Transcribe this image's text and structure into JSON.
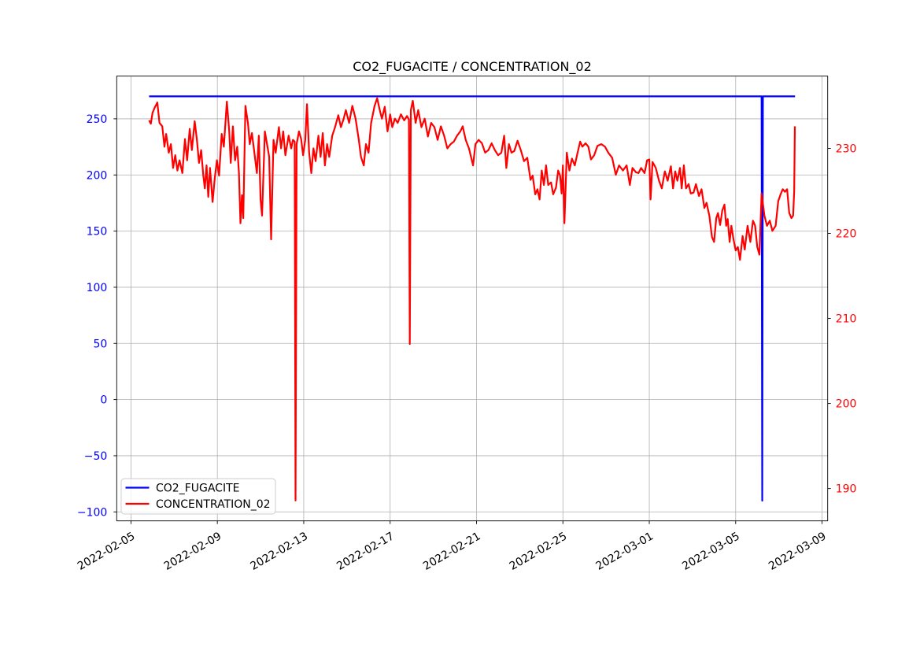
{
  "title": "CO2_FUGACITE / CONCENTRATION_02",
  "chart_data": {
    "type": "line",
    "title": "CO2_FUGACITE / CONCENTRATION_02",
    "grid": {
      "show": true,
      "color": "#b0b0b0"
    },
    "legend": {
      "location": "lower left"
    },
    "x_axis": {
      "kind": "date",
      "epoch_date": "2022-02-05",
      "tick_labels": [
        "2022-02-05",
        "2022-02-09",
        "2022-02-13",
        "2022-02-17",
        "2022-02-21",
        "2022-02-25",
        "2022-03-01",
        "2022-03-05",
        "2022-03-09"
      ],
      "tick_day_offsets": [
        0,
        4,
        8,
        12,
        16,
        20,
        24,
        28,
        32
      ],
      "range_day_offsets": [
        -0.66,
        32.26
      ],
      "label_rotation_deg": 30,
      "label_color": "#000000"
    },
    "y_axis_left": {
      "series": "CO2_FUGACITE",
      "label_color": "#0000ff",
      "tick_labels": [
        "250",
        "200",
        "150",
        "100",
        "50",
        "0",
        "−50",
        "−100"
      ],
      "tick_values": [
        250,
        200,
        150,
        100,
        50,
        0,
        -50,
        -100
      ],
      "range": [
        -108,
        288
      ]
    },
    "y_axis_right": {
      "series": "CONCENTRATION_02",
      "label_color": "#ff0000",
      "tick_labels": [
        "230",
        "220",
        "210",
        "200",
        "190"
      ],
      "tick_values": [
        230,
        220,
        210,
        200,
        190
      ],
      "range": [
        186.2,
        238.5
      ]
    },
    "series": [
      {
        "name": "CO2_FUGACITE",
        "color": "#0000ff",
        "y_axis": "left",
        "points_day_value": [
          [
            0.84,
            270
          ],
          [
            29.2,
            270
          ],
          [
            29.23,
            -90
          ],
          [
            29.26,
            270
          ],
          [
            30.75,
            270
          ]
        ]
      },
      {
        "name": "CONCENTRATION_02",
        "color": "#ff0000",
        "y_axis": "right",
        "points_day_value": [
          [
            0.84,
            233.3
          ],
          [
            0.92,
            232.9
          ],
          [
            1.0,
            234.2
          ],
          [
            1.1,
            234.8
          ],
          [
            1.22,
            235.4
          ],
          [
            1.32,
            233.0
          ],
          [
            1.45,
            232.6
          ],
          [
            1.55,
            230.2
          ],
          [
            1.63,
            231.7
          ],
          [
            1.75,
            229.5
          ],
          [
            1.85,
            230.5
          ],
          [
            1.95,
            227.7
          ],
          [
            2.05,
            229.2
          ],
          [
            2.15,
            227.4
          ],
          [
            2.25,
            228.6
          ],
          [
            2.38,
            227.1
          ],
          [
            2.5,
            231.1
          ],
          [
            2.6,
            228.6
          ],
          [
            2.72,
            232.3
          ],
          [
            2.82,
            229.8
          ],
          [
            2.95,
            233.2
          ],
          [
            3.05,
            231.1
          ],
          [
            3.15,
            228.3
          ],
          [
            3.25,
            229.8
          ],
          [
            3.35,
            226.8
          ],
          [
            3.42,
            225.3
          ],
          [
            3.5,
            228.0
          ],
          [
            3.58,
            224.3
          ],
          [
            3.66,
            227.7
          ],
          [
            3.78,
            223.7
          ],
          [
            3.88,
            226.5
          ],
          [
            3.98,
            228.6
          ],
          [
            4.08,
            226.8
          ],
          [
            4.2,
            231.7
          ],
          [
            4.3,
            230.2
          ],
          [
            4.44,
            235.5
          ],
          [
            4.55,
            232.0
          ],
          [
            4.62,
            228.3
          ],
          [
            4.72,
            232.6
          ],
          [
            4.82,
            228.6
          ],
          [
            4.92,
            230.2
          ],
          [
            5.0,
            227.1
          ],
          [
            5.07,
            221.2
          ],
          [
            5.14,
            224.5
          ],
          [
            5.2,
            221.8
          ],
          [
            5.3,
            235.0
          ],
          [
            5.42,
            232.9
          ],
          [
            5.5,
            230.5
          ],
          [
            5.6,
            231.8
          ],
          [
            5.7,
            229.8
          ],
          [
            5.83,
            227.1
          ],
          [
            5.92,
            231.5
          ],
          [
            6.0,
            224.0
          ],
          [
            6.07,
            222.1
          ],
          [
            6.2,
            232.0
          ],
          [
            6.3,
            230.5
          ],
          [
            6.4,
            229.0
          ],
          [
            6.49,
            219.3
          ],
          [
            6.6,
            231.0
          ],
          [
            6.7,
            229.5
          ],
          [
            6.85,
            232.5
          ],
          [
            6.95,
            230.0
          ],
          [
            7.05,
            232.0
          ],
          [
            7.15,
            229.2
          ],
          [
            7.3,
            231.5
          ],
          [
            7.42,
            230.0
          ],
          [
            7.5,
            231.0
          ],
          [
            7.58,
            230.8
          ],
          [
            7.62,
            188.6
          ],
          [
            7.67,
            230.5
          ],
          [
            7.78,
            232.0
          ],
          [
            7.88,
            231.1
          ],
          [
            7.97,
            229.2
          ],
          [
            8.07,
            231.0
          ],
          [
            8.15,
            235.2
          ],
          [
            8.25,
            229.5
          ],
          [
            8.35,
            227.1
          ],
          [
            8.45,
            230.0
          ],
          [
            8.55,
            228.5
          ],
          [
            8.68,
            231.5
          ],
          [
            8.78,
            229.0
          ],
          [
            8.88,
            231.8
          ],
          [
            8.98,
            228.0
          ],
          [
            9.08,
            230.5
          ],
          [
            9.18,
            229.0
          ],
          [
            9.32,
            231.5
          ],
          [
            9.45,
            232.5
          ],
          [
            9.6,
            233.9
          ],
          [
            9.72,
            232.5
          ],
          [
            9.85,
            233.5
          ],
          [
            9.95,
            234.5
          ],
          [
            10.1,
            233.0
          ],
          [
            10.25,
            235.0
          ],
          [
            10.4,
            233.5
          ],
          [
            10.55,
            231.0
          ],
          [
            10.65,
            229.0
          ],
          [
            10.78,
            228.0
          ],
          [
            10.88,
            230.5
          ],
          [
            11.0,
            229.5
          ],
          [
            11.12,
            233.0
          ],
          [
            11.28,
            235.0
          ],
          [
            11.4,
            235.9
          ],
          [
            11.52,
            234.5
          ],
          [
            11.62,
            233.5
          ],
          [
            11.75,
            234.9
          ],
          [
            11.88,
            232.0
          ],
          [
            12.0,
            234.0
          ],
          [
            12.1,
            232.5
          ],
          [
            12.22,
            233.5
          ],
          [
            12.35,
            233.0
          ],
          [
            12.5,
            234.0
          ],
          [
            12.65,
            233.3
          ],
          [
            12.78,
            233.8
          ],
          [
            12.87,
            233.4
          ],
          [
            12.91,
            207.0
          ],
          [
            12.96,
            234.5
          ],
          [
            13.05,
            235.6
          ],
          [
            13.18,
            233.0
          ],
          [
            13.3,
            234.5
          ],
          [
            13.45,
            232.5
          ],
          [
            13.6,
            233.5
          ],
          [
            13.75,
            231.4
          ],
          [
            13.9,
            233.0
          ],
          [
            14.05,
            232.5
          ],
          [
            14.2,
            231.0
          ],
          [
            14.35,
            232.6
          ],
          [
            14.5,
            231.5
          ],
          [
            14.65,
            230.0
          ],
          [
            14.8,
            230.5
          ],
          [
            14.95,
            230.8
          ],
          [
            15.1,
            231.5
          ],
          [
            15.25,
            232.0
          ],
          [
            15.36,
            232.6
          ],
          [
            15.5,
            231.0
          ],
          [
            15.65,
            230.0
          ],
          [
            15.84,
            228.0
          ],
          [
            15.95,
            230.5
          ],
          [
            16.1,
            231.0
          ],
          [
            16.25,
            230.6
          ],
          [
            16.4,
            229.5
          ],
          [
            16.55,
            229.8
          ],
          [
            16.7,
            230.6
          ],
          [
            16.85,
            229.8
          ],
          [
            17.0,
            229.2
          ],
          [
            17.15,
            229.5
          ],
          [
            17.28,
            231.5
          ],
          [
            17.38,
            227.7
          ],
          [
            17.5,
            230.5
          ],
          [
            17.62,
            229.5
          ],
          [
            17.75,
            229.7
          ],
          [
            17.9,
            230.9
          ],
          [
            18.05,
            229.8
          ],
          [
            18.2,
            228.5
          ],
          [
            18.35,
            228.9
          ],
          [
            18.5,
            226.3
          ],
          [
            18.6,
            226.8
          ],
          [
            18.72,
            224.6
          ],
          [
            18.82,
            225.2
          ],
          [
            18.92,
            224.0
          ],
          [
            19.02,
            227.4
          ],
          [
            19.12,
            225.7
          ],
          [
            19.22,
            228.0
          ],
          [
            19.32,
            225.7
          ],
          [
            19.45,
            226.0
          ],
          [
            19.55,
            224.6
          ],
          [
            19.68,
            225.4
          ],
          [
            19.78,
            227.4
          ],
          [
            19.87,
            226.8
          ],
          [
            19.94,
            224.7
          ],
          [
            20.0,
            228.0
          ],
          [
            20.07,
            221.2
          ],
          [
            20.18,
            229.5
          ],
          [
            20.3,
            227.4
          ],
          [
            20.42,
            228.8
          ],
          [
            20.55,
            228.0
          ],
          [
            20.68,
            229.5
          ],
          [
            20.8,
            230.8
          ],
          [
            20.9,
            230.2
          ],
          [
            21.05,
            230.6
          ],
          [
            21.18,
            230.2
          ],
          [
            21.3,
            228.7
          ],
          [
            21.45,
            229.2
          ],
          [
            21.6,
            230.3
          ],
          [
            21.78,
            230.5
          ],
          [
            21.95,
            230.2
          ],
          [
            22.1,
            229.5
          ],
          [
            22.28,
            228.9
          ],
          [
            22.45,
            226.9
          ],
          [
            22.6,
            228.0
          ],
          [
            22.78,
            227.4
          ],
          [
            22.95,
            228.0
          ],
          [
            23.1,
            225.7
          ],
          [
            23.22,
            227.7
          ],
          [
            23.38,
            227.2
          ],
          [
            23.5,
            227.1
          ],
          [
            23.62,
            227.7
          ],
          [
            23.78,
            227.1
          ],
          [
            23.9,
            228.6
          ],
          [
            24.0,
            228.7
          ],
          [
            24.06,
            224.0
          ],
          [
            24.15,
            228.4
          ],
          [
            24.3,
            227.7
          ],
          [
            24.45,
            226.2
          ],
          [
            24.58,
            225.3
          ],
          [
            24.72,
            227.3
          ],
          [
            24.85,
            226.2
          ],
          [
            25.0,
            227.9
          ],
          [
            25.1,
            225.3
          ],
          [
            25.2,
            227.3
          ],
          [
            25.3,
            226.2
          ],
          [
            25.42,
            227.7
          ],
          [
            25.5,
            225.3
          ],
          [
            25.6,
            228.0
          ],
          [
            25.7,
            225.3
          ],
          [
            25.82,
            225.8
          ],
          [
            25.92,
            224.7
          ],
          [
            26.05,
            224.8
          ],
          [
            26.16,
            225.8
          ],
          [
            26.3,
            224.4
          ],
          [
            26.42,
            225.2
          ],
          [
            26.55,
            223.0
          ],
          [
            26.65,
            223.6
          ],
          [
            26.78,
            222.1
          ],
          [
            26.9,
            219.6
          ],
          [
            27.0,
            219.0
          ],
          [
            27.1,
            221.8
          ],
          [
            27.18,
            222.4
          ],
          [
            27.28,
            221.0
          ],
          [
            27.38,
            222.7
          ],
          [
            27.48,
            223.4
          ],
          [
            27.56,
            220.9
          ],
          [
            27.63,
            221.7
          ],
          [
            27.72,
            219.0
          ],
          [
            27.8,
            220.9
          ],
          [
            27.9,
            219.3
          ],
          [
            28.0,
            218.0
          ],
          [
            28.1,
            218.4
          ],
          [
            28.2,
            216.9
          ],
          [
            28.32,
            219.7
          ],
          [
            28.42,
            218.1
          ],
          [
            28.55,
            220.9
          ],
          [
            28.68,
            219.0
          ],
          [
            28.8,
            221.5
          ],
          [
            28.9,
            220.9
          ],
          [
            29.0,
            218.4
          ],
          [
            29.1,
            217.5
          ],
          [
            29.2,
            224.7
          ],
          [
            29.33,
            222.1
          ],
          [
            29.45,
            220.9
          ],
          [
            29.58,
            221.5
          ],
          [
            29.7,
            220.3
          ],
          [
            29.85,
            220.9
          ],
          [
            29.97,
            223.8
          ],
          [
            30.08,
            224.6
          ],
          [
            30.18,
            225.2
          ],
          [
            30.28,
            224.9
          ],
          [
            30.38,
            225.2
          ],
          [
            30.48,
            222.4
          ],
          [
            30.58,
            221.8
          ],
          [
            30.66,
            222.1
          ],
          [
            30.71,
            225.0
          ],
          [
            30.74,
            232.6
          ]
        ]
      }
    ]
  }
}
